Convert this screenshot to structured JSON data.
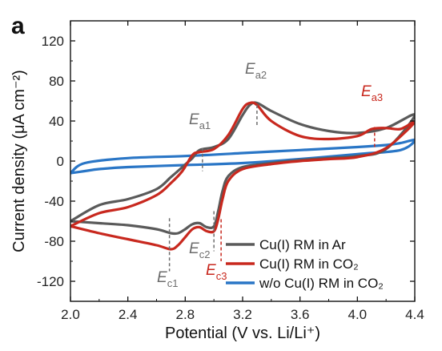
{
  "panel_label": "a",
  "chart_data": {
    "type": "line",
    "xlabel": "Potential (V vs. Li/Li⁺)",
    "ylabel": "Current density (μA cm⁻²)",
    "xlim": [
      2.0,
      4.4
    ],
    "ylim": [
      -140,
      140
    ],
    "xticks": [
      2.0,
      2.4,
      2.8,
      3.2,
      3.6,
      4.0,
      4.4
    ],
    "xtick_labels": [
      "2.0",
      "2.4",
      "2.8",
      "3.2",
      "3.6",
      "4.0",
      "4.4"
    ],
    "yticks": [
      -120,
      -80,
      -40,
      0,
      40,
      80,
      120
    ],
    "ytick_labels": [
      "-120",
      "-80",
      "-40",
      "0",
      "40",
      "80",
      "120"
    ],
    "grid": false,
    "legend_position": "bottom-right",
    "series": [
      {
        "name": "Cu(I) RM in Ar",
        "color": "#5a5a5a",
        "x": [
          2.0,
          2.2,
          2.4,
          2.6,
          2.7,
          2.78,
          2.85,
          2.9,
          3.0,
          3.1,
          3.2,
          3.25,
          3.3,
          3.4,
          3.6,
          3.8,
          4.0,
          4.2,
          4.4,
          4.2,
          4.0,
          3.8,
          3.6,
          3.4,
          3.2,
          3.1,
          3.06,
          3.03,
          3.0,
          2.95,
          2.9,
          2.85,
          2.8,
          2.75,
          2.7,
          2.6,
          2.4,
          2.2,
          2.0
        ],
        "y": [
          -60,
          -44,
          -38,
          -28,
          -16,
          -6,
          3,
          11,
          14,
          22,
          46,
          56,
          58,
          50,
          37,
          30,
          28,
          33,
          46,
          12,
          5,
          3,
          1,
          -2,
          -6,
          -15,
          -30,
          -50,
          -65,
          -66,
          -62,
          -63,
          -68,
          -72,
          -72,
          -68,
          -64,
          -62,
          -60
        ]
      },
      {
        "name": "Cu(I) RM in CO₂",
        "color": "#c8281e",
        "x": [
          2.0,
          2.2,
          2.4,
          2.6,
          2.7,
          2.78,
          2.85,
          2.9,
          3.0,
          3.1,
          3.2,
          3.25,
          3.3,
          3.4,
          3.6,
          3.8,
          4.0,
          4.1,
          4.2,
          4.3,
          4.4,
          4.2,
          4.0,
          3.8,
          3.6,
          3.4,
          3.2,
          3.1,
          3.06,
          3.03,
          3.0,
          2.95,
          2.9,
          2.85,
          2.8,
          2.75,
          2.7,
          2.6,
          2.4,
          2.2,
          2.0
        ],
        "y": [
          -65,
          -52,
          -46,
          -34,
          -22,
          -10,
          6,
          9,
          12,
          26,
          52,
          58,
          56,
          40,
          25,
          22,
          25,
          32,
          33,
          32,
          39,
          13,
          4,
          2,
          0,
          -3,
          -8,
          -20,
          -38,
          -58,
          -70,
          -70,
          -66,
          -68,
          -76,
          -84,
          -88,
          -84,
          -78,
          -72,
          -65
        ]
      },
      {
        "name": "w/o Cu(I) RM in CO₂",
        "color": "#2a76c6",
        "x": [
          2.0,
          2.1,
          2.4,
          2.8,
          3.2,
          3.6,
          4.0,
          4.2,
          4.3,
          4.4,
          4.3,
          4.0,
          3.6,
          3.2,
          2.8,
          2.4,
          2.2,
          2.1,
          2.0
        ],
        "y": [
          -12,
          -2,
          3,
          5,
          8,
          11,
          14,
          16,
          18,
          21,
          11,
          7,
          2,
          -2,
          -4,
          -6,
          -8,
          -10,
          -12
        ]
      }
    ],
    "annotations": [
      {
        "main": "E",
        "sub": "a1",
        "color": "#6d6d6d",
        "x": 2.92,
        "y_top": 13,
        "y_bottom": -10
      },
      {
        "main": "E",
        "sub": "a2",
        "color": "#6d6d6d",
        "x": 3.3,
        "y_top": 56,
        "y_bottom": 36
      },
      {
        "main": "E",
        "sub": "a3",
        "color": "#c8281e",
        "x": 4.12,
        "y_top": 34,
        "y_bottom": 12
      },
      {
        "main": "E",
        "sub": "c1",
        "color": "#6d6d6d",
        "x": 2.69,
        "y_top": -57,
        "y_bottom": -110
      },
      {
        "main": "E",
        "sub": "c2",
        "color": "#6d6d6d",
        "x": 3.0,
        "y_top": -50,
        "y_bottom": -90
      },
      {
        "main": "E",
        "sub": "c3",
        "color": "#c8281e",
        "x": 3.05,
        "y_top": -58,
        "y_bottom": -100
      }
    ]
  }
}
